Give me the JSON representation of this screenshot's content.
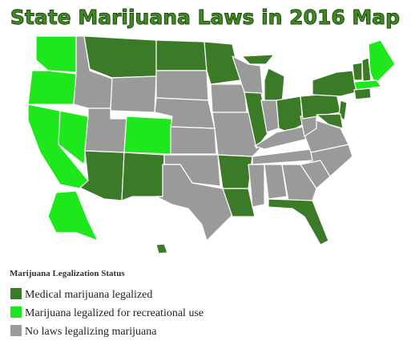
{
  "title": "State Marijuana Laws in 2016 Map",
  "legend": {
    "title": "Marijuana Legalization Status",
    "items": [
      {
        "label": "Medical marijuana legalized",
        "color": "#3b7a27"
      },
      {
        "label": "Marijuana legalized for recreational use",
        "color": "#1ee81c"
      },
      {
        "label": "No laws legalizing marijuana",
        "color": "#9a9a9a"
      }
    ]
  }
}
